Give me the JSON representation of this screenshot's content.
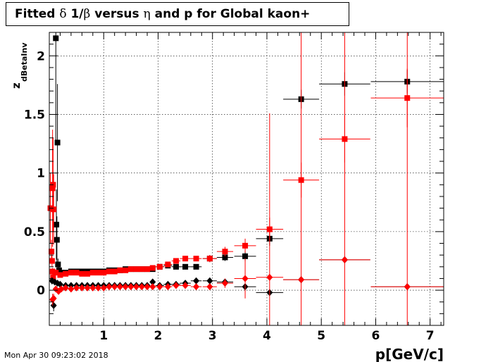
{
  "title": {
    "prefix": "Fitted ",
    "delta": "δ",
    "mid": " 1/",
    "beta": "β",
    "vs": " versus ",
    "eta": "η",
    "suffix": " and p for Global kaon+"
  },
  "footer": "Mon Apr 30 09:23:02 2018",
  "chart_data": {
    "type": "scatter",
    "title": "Fitted δ 1/β versus η and p for Global kaon+",
    "xlabel": "p[GeV/c]",
    "ylabel": {
      "main": "z",
      "sub": "dBetaInv"
    },
    "xlim": [
      0.0,
      7.25
    ],
    "ylim": [
      -0.3,
      2.2
    ],
    "xticks": [
      1,
      2,
      3,
      4,
      5,
      6,
      7
    ],
    "yticks": [
      0,
      0.5,
      1,
      1.5,
      2
    ],
    "xtick_labels": [
      "1",
      "2",
      "3",
      "4",
      "5",
      "6",
      "7"
    ],
    "ytick_labels": [
      "0",
      "0.5",
      "1",
      "1.5",
      "2"
    ],
    "grid": true,
    "colors": {
      "black": "#000000",
      "red": "#ff0000"
    },
    "series": [
      {
        "color": "#000000",
        "marker": "square",
        "points": [
          {
            "x": 0.12,
            "y": 2.15,
            "ex": 0.01,
            "ey": 0.9
          },
          {
            "x": 0.15,
            "y": 1.26,
            "ex": 0.01,
            "ey": 0.5
          },
          {
            "x": 0.13,
            "y": 0.56,
            "ex": 0.01,
            "ey": 0.3
          },
          {
            "x": 0.14,
            "y": 0.43,
            "ex": 0.01,
            "ey": 0.2
          },
          {
            "x": 0.16,
            "y": 0.22,
            "ex": 0.01,
            "ey": 0.05
          },
          {
            "x": 0.18,
            "y": 0.17,
            "ex": 0.01,
            "ey": 0.03
          },
          {
            "x": 0.22,
            "y": 0.15,
            "ex": 0.02,
            "ey": 0.02
          },
          {
            "x": 0.3,
            "y": 0.15,
            "ex": 0.02,
            "ey": 0.01
          },
          {
            "x": 0.4,
            "y": 0.16,
            "ex": 0.03,
            "ey": 0.01
          },
          {
            "x": 0.5,
            "y": 0.16,
            "ex": 0.03,
            "ey": 0.01
          },
          {
            "x": 0.6,
            "y": 0.16,
            "ex": 0.03,
            "ey": 0.01
          },
          {
            "x": 0.7,
            "y": 0.16,
            "ex": 0.03,
            "ey": 0.01
          },
          {
            "x": 0.8,
            "y": 0.16,
            "ex": 0.03,
            "ey": 0.01
          },
          {
            "x": 0.9,
            "y": 0.16,
            "ex": 0.03,
            "ey": 0.01
          },
          {
            "x": 1.0,
            "y": 0.16,
            "ex": 0.03,
            "ey": 0.01
          },
          {
            "x": 1.1,
            "y": 0.17,
            "ex": 0.03,
            "ey": 0.01
          },
          {
            "x": 1.2,
            "y": 0.17,
            "ex": 0.03,
            "ey": 0.01
          },
          {
            "x": 1.3,
            "y": 0.17,
            "ex": 0.03,
            "ey": 0.01
          },
          {
            "x": 1.4,
            "y": 0.18,
            "ex": 0.03,
            "ey": 0.01
          },
          {
            "x": 1.5,
            "y": 0.18,
            "ex": 0.03,
            "ey": 0.01
          },
          {
            "x": 1.6,
            "y": 0.18,
            "ex": 0.03,
            "ey": 0.01
          },
          {
            "x": 1.7,
            "y": 0.18,
            "ex": 0.03,
            "ey": 0.01
          },
          {
            "x": 1.8,
            "y": 0.18,
            "ex": 0.03,
            "ey": 0.01
          },
          {
            "x": 1.9,
            "y": 0.18,
            "ex": 0.05,
            "ey": 0.01
          },
          {
            "x": 2.03,
            "y": 0.2,
            "ex": 0.08,
            "ey": 0.01
          },
          {
            "x": 2.18,
            "y": 0.21,
            "ex": 0.08,
            "ey": 0.01
          },
          {
            "x": 2.33,
            "y": 0.2,
            "ex": 0.08,
            "ey": 0.02
          },
          {
            "x": 2.5,
            "y": 0.2,
            "ex": 0.1,
            "ey": 0.02
          },
          {
            "x": 2.7,
            "y": 0.2,
            "ex": 0.1,
            "ey": 0.02
          },
          {
            "x": 2.95,
            "y": 0.27,
            "ex": 0.13,
            "ey": 0.03
          },
          {
            "x": 3.23,
            "y": 0.28,
            "ex": 0.15,
            "ey": 0.03
          },
          {
            "x": 3.6,
            "y": 0.29,
            "ex": 0.2,
            "ey": 0.04
          },
          {
            "x": 4.05,
            "y": 0.44,
            "ex": 0.25,
            "ey": 0.06
          },
          {
            "x": 4.63,
            "y": 1.63,
            "ex": 0.33,
            "ey": 0.08
          },
          {
            "x": 5.43,
            "y": 1.76,
            "ex": 0.47,
            "ey": 0.1
          },
          {
            "x": 6.58,
            "y": 1.78,
            "ex": 0.67,
            "ey": 0.1
          }
        ]
      },
      {
        "color": "#ff0000",
        "marker": "square",
        "points": [
          {
            "x": 0.02,
            "y": 0.7,
            "ex": 0.01,
            "ey": 0.3
          },
          {
            "x": 0.06,
            "y": 0.87,
            "ex": 0.01,
            "ey": 0.5
          },
          {
            "x": 0.07,
            "y": 0.9,
            "ex": 0.01,
            "ey": 0.4
          },
          {
            "x": 0.08,
            "y": 0.69,
            "ex": 0.01,
            "ey": 0.3
          },
          {
            "x": 0.04,
            "y": 0.33,
            "ex": 0.01,
            "ey": 0.1
          },
          {
            "x": 0.05,
            "y": 0.25,
            "ex": 0.01,
            "ey": 0.05
          },
          {
            "x": 0.06,
            "y": 0.16,
            "ex": 0.01,
            "ey": 0.03
          },
          {
            "x": 0.07,
            "y": 0.11,
            "ex": 0.01,
            "ey": 0.03
          },
          {
            "x": 0.12,
            "y": 0.15,
            "ex": 0.02,
            "ey": 0.02
          },
          {
            "x": 0.2,
            "y": 0.13,
            "ex": 0.02,
            "ey": 0.01
          },
          {
            "x": 0.3,
            "y": 0.14,
            "ex": 0.02,
            "ey": 0.01
          },
          {
            "x": 0.4,
            "y": 0.15,
            "ex": 0.03,
            "ey": 0.01
          },
          {
            "x": 0.5,
            "y": 0.15,
            "ex": 0.03,
            "ey": 0.01
          },
          {
            "x": 0.6,
            "y": 0.14,
            "ex": 0.03,
            "ey": 0.01
          },
          {
            "x": 0.7,
            "y": 0.14,
            "ex": 0.03,
            "ey": 0.01
          },
          {
            "x": 0.8,
            "y": 0.15,
            "ex": 0.03,
            "ey": 0.01
          },
          {
            "x": 0.9,
            "y": 0.15,
            "ex": 0.03,
            "ey": 0.01
          },
          {
            "x": 1.0,
            "y": 0.15,
            "ex": 0.03,
            "ey": 0.01
          },
          {
            "x": 1.1,
            "y": 0.16,
            "ex": 0.03,
            "ey": 0.01
          },
          {
            "x": 1.2,
            "y": 0.16,
            "ex": 0.03,
            "ey": 0.01
          },
          {
            "x": 1.3,
            "y": 0.17,
            "ex": 0.03,
            "ey": 0.01
          },
          {
            "x": 1.4,
            "y": 0.17,
            "ex": 0.03,
            "ey": 0.01
          },
          {
            "x": 1.5,
            "y": 0.18,
            "ex": 0.03,
            "ey": 0.01
          },
          {
            "x": 1.6,
            "y": 0.18,
            "ex": 0.03,
            "ey": 0.01
          },
          {
            "x": 1.7,
            "y": 0.18,
            "ex": 0.03,
            "ey": 0.01
          },
          {
            "x": 1.8,
            "y": 0.18,
            "ex": 0.03,
            "ey": 0.01
          },
          {
            "x": 1.9,
            "y": 0.19,
            "ex": 0.05,
            "ey": 0.01
          },
          {
            "x": 2.03,
            "y": 0.2,
            "ex": 0.08,
            "ey": 0.01
          },
          {
            "x": 2.18,
            "y": 0.22,
            "ex": 0.08,
            "ey": 0.02
          },
          {
            "x": 2.33,
            "y": 0.25,
            "ex": 0.08,
            "ey": 0.02
          },
          {
            "x": 2.5,
            "y": 0.27,
            "ex": 0.1,
            "ey": 0.02
          },
          {
            "x": 2.7,
            "y": 0.27,
            "ex": 0.1,
            "ey": 0.02
          },
          {
            "x": 2.95,
            "y": 0.27,
            "ex": 0.13,
            "ey": 0.03
          },
          {
            "x": 3.23,
            "y": 0.33,
            "ex": 0.15,
            "ey": 0.04
          },
          {
            "x": 3.6,
            "y": 0.38,
            "ex": 0.2,
            "ey": 0.06
          },
          {
            "x": 4.05,
            "y": 0.52,
            "ex": 0.25,
            "ey": 0.1
          },
          {
            "x": 4.63,
            "y": 0.94,
            "ex": 0.33,
            "ey": 0.15
          },
          {
            "x": 5.43,
            "y": 1.29,
            "ex": 0.47,
            "ey": 0.2
          },
          {
            "x": 6.58,
            "y": 1.64,
            "ex": 0.67,
            "ey": 0.25
          }
        ]
      },
      {
        "color": "#000000",
        "marker": "diamond",
        "points": [
          {
            "x": 0.08,
            "y": -0.13,
            "ex": 0.01,
            "ey": 0.05
          },
          {
            "x": 0.05,
            "y": 0.08,
            "ex": 0.01,
            "ey": 0.03
          },
          {
            "x": 0.1,
            "y": 0.07,
            "ex": 0.01,
            "ey": 0.02
          },
          {
            "x": 0.15,
            "y": 0.06,
            "ex": 0.02,
            "ey": 0.02
          },
          {
            "x": 0.2,
            "y": 0.05,
            "ex": 0.02,
            "ey": 0.01
          },
          {
            "x": 0.3,
            "y": 0.04,
            "ex": 0.02,
            "ey": 0.01
          },
          {
            "x": 0.4,
            "y": 0.04,
            "ex": 0.03,
            "ey": 0.01
          },
          {
            "x": 0.5,
            "y": 0.04,
            "ex": 0.03,
            "ey": 0.01
          },
          {
            "x": 0.6,
            "y": 0.04,
            "ex": 0.03,
            "ey": 0.01
          },
          {
            "x": 0.7,
            "y": 0.04,
            "ex": 0.03,
            "ey": 0.01
          },
          {
            "x": 0.8,
            "y": 0.04,
            "ex": 0.03,
            "ey": 0.01
          },
          {
            "x": 0.9,
            "y": 0.04,
            "ex": 0.03,
            "ey": 0.01
          },
          {
            "x": 1.0,
            "y": 0.04,
            "ex": 0.03,
            "ey": 0.01
          },
          {
            "x": 1.1,
            "y": 0.04,
            "ex": 0.03,
            "ey": 0.01
          },
          {
            "x": 1.2,
            "y": 0.04,
            "ex": 0.03,
            "ey": 0.01
          },
          {
            "x": 1.3,
            "y": 0.04,
            "ex": 0.03,
            "ey": 0.01
          },
          {
            "x": 1.4,
            "y": 0.04,
            "ex": 0.03,
            "ey": 0.01
          },
          {
            "x": 1.5,
            "y": 0.04,
            "ex": 0.03,
            "ey": 0.01
          },
          {
            "x": 1.6,
            "y": 0.04,
            "ex": 0.03,
            "ey": 0.01
          },
          {
            "x": 1.7,
            "y": 0.04,
            "ex": 0.03,
            "ey": 0.01
          },
          {
            "x": 1.8,
            "y": 0.04,
            "ex": 0.03,
            "ey": 0.01
          },
          {
            "x": 1.9,
            "y": 0.07,
            "ex": 0.05,
            "ey": 0.01
          },
          {
            "x": 2.03,
            "y": 0.04,
            "ex": 0.08,
            "ey": 0.01
          },
          {
            "x": 2.18,
            "y": 0.05,
            "ex": 0.08,
            "ey": 0.01
          },
          {
            "x": 2.33,
            "y": 0.05,
            "ex": 0.08,
            "ey": 0.01
          },
          {
            "x": 2.5,
            "y": 0.06,
            "ex": 0.1,
            "ey": 0.01
          },
          {
            "x": 2.7,
            "y": 0.08,
            "ex": 0.1,
            "ey": 0.01
          },
          {
            "x": 2.95,
            "y": 0.08,
            "ex": 0.13,
            "ey": 0.01
          },
          {
            "x": 3.23,
            "y": 0.07,
            "ex": 0.15,
            "ey": 0.02
          },
          {
            "x": 3.6,
            "y": 0.03,
            "ex": 0.2,
            "ey": 0.02
          },
          {
            "x": 4.05,
            "y": -0.02,
            "ex": 0.25,
            "ey": 0.02
          },
          {
            "x": 4.63,
            "y": 0.09,
            "ex": 0.33,
            "ey": 0.03
          },
          {
            "x": 5.43,
            "y": 0.26,
            "ex": 0.47,
            "ey": 0.03
          },
          {
            "x": 6.58,
            "y": 0.03,
            "ex": 0.67,
            "ey": 0.02
          }
        ]
      },
      {
        "color": "#ff0000",
        "marker": "diamond",
        "points": [
          {
            "x": 0.06,
            "y": -0.08,
            "ex": 0.01,
            "ey": 0.05
          },
          {
            "x": 0.08,
            "y": -0.07,
            "ex": 0.01,
            "ey": 0.04
          },
          {
            "x": 0.12,
            "y": 0.01,
            "ex": 0.01,
            "ey": 0.02
          },
          {
            "x": 0.17,
            "y": -0.01,
            "ex": 0.02,
            "ey": 0.02
          },
          {
            "x": 0.22,
            "y": 0.01,
            "ex": 0.02,
            "ey": 0.01
          },
          {
            "x": 0.3,
            "y": 0.02,
            "ex": 0.02,
            "ey": 0.01
          },
          {
            "x": 0.4,
            "y": 0.01,
            "ex": 0.03,
            "ey": 0.01
          },
          {
            "x": 0.5,
            "y": 0.02,
            "ex": 0.03,
            "ey": 0.01
          },
          {
            "x": 0.6,
            "y": 0.02,
            "ex": 0.03,
            "ey": 0.01
          },
          {
            "x": 0.7,
            "y": 0.02,
            "ex": 0.03,
            "ey": 0.01
          },
          {
            "x": 0.8,
            "y": 0.02,
            "ex": 0.03,
            "ey": 0.01
          },
          {
            "x": 0.9,
            "y": 0.02,
            "ex": 0.03,
            "ey": 0.01
          },
          {
            "x": 1.0,
            "y": 0.02,
            "ex": 0.03,
            "ey": 0.01
          },
          {
            "x": 1.1,
            "y": 0.03,
            "ex": 0.03,
            "ey": 0.01
          },
          {
            "x": 1.2,
            "y": 0.03,
            "ex": 0.03,
            "ey": 0.01
          },
          {
            "x": 1.3,
            "y": 0.03,
            "ex": 0.03,
            "ey": 0.01
          },
          {
            "x": 1.4,
            "y": 0.03,
            "ex": 0.03,
            "ey": 0.01
          },
          {
            "x": 1.5,
            "y": 0.03,
            "ex": 0.03,
            "ey": 0.01
          },
          {
            "x": 1.6,
            "y": 0.03,
            "ex": 0.03,
            "ey": 0.01
          },
          {
            "x": 1.7,
            "y": 0.03,
            "ex": 0.03,
            "ey": 0.01
          },
          {
            "x": 1.8,
            "y": 0.03,
            "ex": 0.03,
            "ey": 0.01
          },
          {
            "x": 1.9,
            "y": 0.03,
            "ex": 0.05,
            "ey": 0.01
          },
          {
            "x": 2.03,
            "y": 0.03,
            "ex": 0.08,
            "ey": 0.01
          },
          {
            "x": 2.18,
            "y": 0.03,
            "ex": 0.08,
            "ey": 0.01
          },
          {
            "x": 2.33,
            "y": 0.04,
            "ex": 0.08,
            "ey": 0.01
          },
          {
            "x": 2.5,
            "y": 0.04,
            "ex": 0.1,
            "ey": 0.01
          },
          {
            "x": 2.7,
            "y": 0.03,
            "ex": 0.1,
            "ey": 0.01
          },
          {
            "x": 2.95,
            "y": 0.03,
            "ex": 0.13,
            "ey": 0.01
          },
          {
            "x": 3.23,
            "y": 0.06,
            "ex": 0.15,
            "ey": 0.04
          },
          {
            "x": 3.6,
            "y": 0.1,
            "ex": 0.2,
            "ey": 0.17
          },
          {
            "x": 4.05,
            "y": 0.11,
            "ex": 0.25,
            "ey": 1.4
          },
          {
            "x": 4.63,
            "y": 0.09,
            "ex": 0.33,
            "ey": 2.3
          },
          {
            "x": 5.43,
            "y": 0.26,
            "ex": 0.47,
            "ey": 2.3
          },
          {
            "x": 6.58,
            "y": 0.03,
            "ex": 0.67,
            "ey": 2.3
          }
        ]
      }
    ]
  }
}
